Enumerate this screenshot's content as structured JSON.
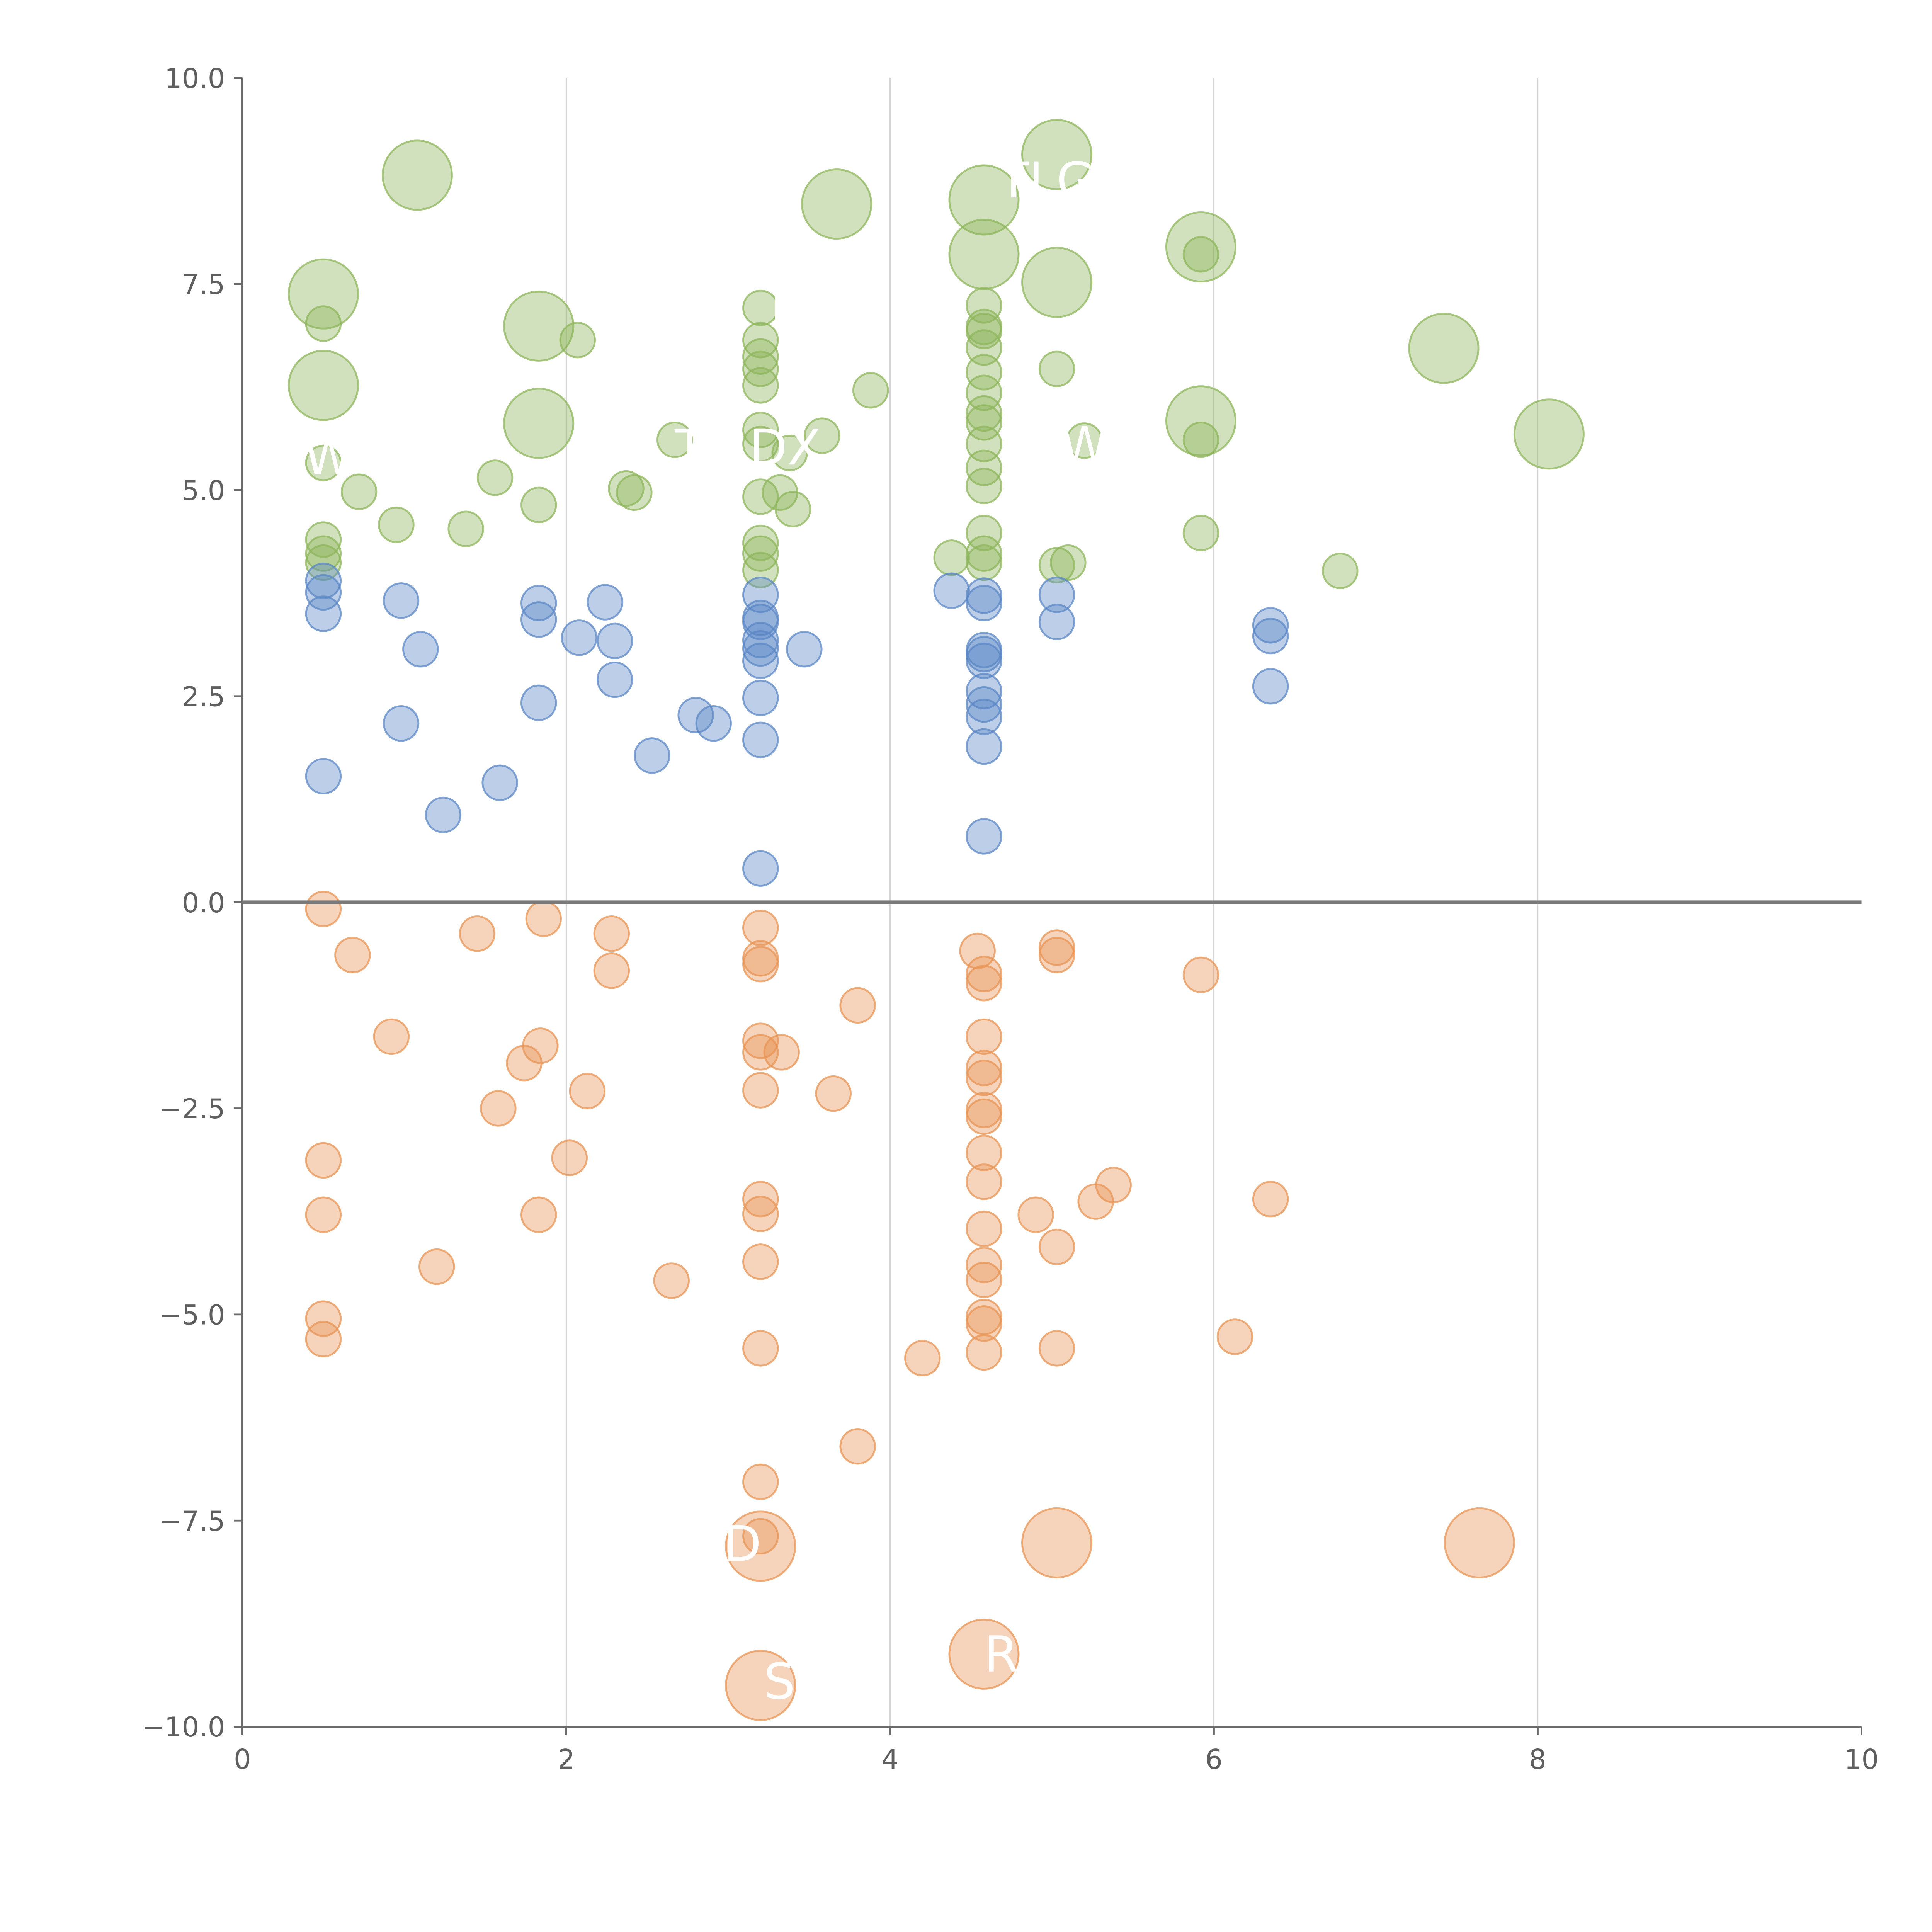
{
  "colors": {
    "positive_high": "#8db55b",
    "positive_low": "#5b87c5",
    "negative": "#e89454",
    "grid": "#d5d5d5",
    "axis": "#6b6b6b",
    "zero_line": "#7a7a7a",
    "label": "#ffffff"
  },
  "chart_data": {
    "type": "scatter",
    "title": "",
    "xlabel": "",
    "ylabel": "",
    "xlim": [
      0,
      10
    ],
    "ylim": [
      -10,
      10
    ],
    "x_ticks": [
      "0",
      "2",
      "4",
      "6",
      "8",
      "10"
    ],
    "y_ticks": [
      "10.0",
      "7.5",
      "5.0",
      "2.5",
      "0.0",
      "−2.5",
      "−5.0",
      "−7.5",
      "−10.0"
    ],
    "grid": "vertical",
    "series": [
      {
        "name": "green",
        "color": "positive_high",
        "points": [
          {
            "x": 1.08,
            "y": 8.82,
            "s": 28
          },
          {
            "x": 0.5,
            "y": 7.38,
            "s": 28
          },
          {
            "x": 0.5,
            "y": 7.02,
            "s": 14
          },
          {
            "x": 0.5,
            "y": 6.27,
            "s": 28
          },
          {
            "x": 0.5,
            "y": 5.33,
            "s": 14
          },
          {
            "x": 0.72,
            "y": 4.98,
            "s": 14
          },
          {
            "x": 0.5,
            "y": 4.4,
            "s": 14
          },
          {
            "x": 0.5,
            "y": 4.23,
            "s": 14
          },
          {
            "x": 0.5,
            "y": 4.12,
            "s": 14
          },
          {
            "x": 0.95,
            "y": 4.58,
            "s": 14
          },
          {
            "x": 1.38,
            "y": 4.53,
            "s": 14
          },
          {
            "x": 1.56,
            "y": 5.15,
            "s": 14
          },
          {
            "x": 1.83,
            "y": 6.99,
            "s": 28
          },
          {
            "x": 2.07,
            "y": 6.82,
            "s": 14
          },
          {
            "x": 1.83,
            "y": 5.81,
            "s": 28
          },
          {
            "x": 1.83,
            "y": 4.82,
            "s": 14
          },
          {
            "x": 2.37,
            "y": 5.02,
            "s": 14
          },
          {
            "x": 2.42,
            "y": 4.97,
            "s": 14
          },
          {
            "x": 2.67,
            "y": 5.61,
            "s": 14
          },
          {
            "x": 3.2,
            "y": 7.21,
            "s": 14
          },
          {
            "x": 3.2,
            "y": 6.82,
            "s": 14
          },
          {
            "x": 3.2,
            "y": 6.62,
            "s": 14
          },
          {
            "x": 3.2,
            "y": 6.47,
            "s": 14
          },
          {
            "x": 3.2,
            "y": 6.27,
            "s": 14
          },
          {
            "x": 3.2,
            "y": 5.73,
            "s": 14
          },
          {
            "x": 3.2,
            "y": 5.56,
            "s": 14
          },
          {
            "x": 3.38,
            "y": 5.45,
            "s": 14
          },
          {
            "x": 3.58,
            "y": 5.66,
            "s": 14
          },
          {
            "x": 3.2,
            "y": 4.92,
            "s": 14
          },
          {
            "x": 3.32,
            "y": 4.97,
            "s": 14
          },
          {
            "x": 3.4,
            "y": 4.77,
            "s": 14
          },
          {
            "x": 3.2,
            "y": 4.36,
            "s": 14
          },
          {
            "x": 3.2,
            "y": 4.23,
            "s": 14
          },
          {
            "x": 3.2,
            "y": 4.03,
            "s": 14
          },
          {
            "x": 3.67,
            "y": 8.47,
            "s": 28
          },
          {
            "x": 3.88,
            "y": 6.21,
            "s": 14
          },
          {
            "x": 4.58,
            "y": 8.52,
            "s": 28
          },
          {
            "x": 4.58,
            "y": 7.86,
            "s": 28
          },
          {
            "x": 4.58,
            "y": 7.24,
            "s": 14
          },
          {
            "x": 4.58,
            "y": 6.98,
            "s": 14
          },
          {
            "x": 4.58,
            "y": 6.93,
            "s": 14
          },
          {
            "x": 4.58,
            "y": 6.73,
            "s": 14
          },
          {
            "x": 4.58,
            "y": 6.43,
            "s": 14
          },
          {
            "x": 4.58,
            "y": 6.18,
            "s": 14
          },
          {
            "x": 4.58,
            "y": 5.93,
            "s": 14
          },
          {
            "x": 4.58,
            "y": 5.82,
            "s": 14
          },
          {
            "x": 4.58,
            "y": 5.56,
            "s": 14
          },
          {
            "x": 4.58,
            "y": 5.27,
            "s": 14
          },
          {
            "x": 4.58,
            "y": 5.05,
            "s": 14
          },
          {
            "x": 4.58,
            "y": 4.48,
            "s": 14
          },
          {
            "x": 4.58,
            "y": 4.23,
            "s": 14
          },
          {
            "x": 4.58,
            "y": 4.12,
            "s": 14
          },
          {
            "x": 4.38,
            "y": 4.18,
            "s": 14
          },
          {
            "x": 5.03,
            "y": 9.07,
            "s": 28
          },
          {
            "x": 5.03,
            "y": 7.52,
            "s": 28
          },
          {
            "x": 5.03,
            "y": 6.47,
            "s": 14
          },
          {
            "x": 5.03,
            "y": 4.09,
            "s": 14
          },
          {
            "x": 5.1,
            "y": 4.12,
            "s": 14
          },
          {
            "x": 5.2,
            "y": 5.6,
            "s": 14
          },
          {
            "x": 5.92,
            "y": 7.95,
            "s": 28
          },
          {
            "x": 5.92,
            "y": 7.86,
            "s": 14
          },
          {
            "x": 5.92,
            "y": 5.84,
            "s": 28
          },
          {
            "x": 5.92,
            "y": 5.61,
            "s": 14
          },
          {
            "x": 5.92,
            "y": 4.48,
            "s": 14
          },
          {
            "x": 6.78,
            "y": 4.02,
            "s": 14
          },
          {
            "x": 7.42,
            "y": 6.72,
            "s": 28
          },
          {
            "x": 8.07,
            "y": 5.68,
            "s": 28
          }
        ]
      },
      {
        "name": "blue",
        "color": "positive_low",
        "points": [
          {
            "x": 0.5,
            "y": 3.9,
            "s": 14
          },
          {
            "x": 0.5,
            "y": 3.76,
            "s": 14
          },
          {
            "x": 0.5,
            "y": 3.5,
            "s": 14
          },
          {
            "x": 0.98,
            "y": 3.66,
            "s": 14
          },
          {
            "x": 1.1,
            "y": 3.07,
            "s": 14
          },
          {
            "x": 0.98,
            "y": 2.17,
            "s": 14
          },
          {
            "x": 0.5,
            "y": 1.53,
            "s": 14
          },
          {
            "x": 1.24,
            "y": 1.06,
            "s": 14
          },
          {
            "x": 1.59,
            "y": 1.45,
            "s": 14
          },
          {
            "x": 1.83,
            "y": 3.63,
            "s": 14
          },
          {
            "x": 1.83,
            "y": 3.43,
            "s": 14
          },
          {
            "x": 1.83,
            "y": 2.42,
            "s": 14
          },
          {
            "x": 2.08,
            "y": 3.21,
            "s": 14
          },
          {
            "x": 2.24,
            "y": 3.64,
            "s": 14
          },
          {
            "x": 2.3,
            "y": 3.17,
            "s": 14
          },
          {
            "x": 2.3,
            "y": 2.7,
            "s": 14
          },
          {
            "x": 2.53,
            "y": 1.78,
            "s": 14
          },
          {
            "x": 2.8,
            "y": 2.27,
            "s": 14
          },
          {
            "x": 2.91,
            "y": 2.17,
            "s": 14
          },
          {
            "x": 3.2,
            "y": 3.73,
            "s": 14
          },
          {
            "x": 3.2,
            "y": 3.45,
            "s": 14
          },
          {
            "x": 3.2,
            "y": 3.4,
            "s": 14
          },
          {
            "x": 3.2,
            "y": 3.18,
            "s": 14
          },
          {
            "x": 3.2,
            "y": 3.08,
            "s": 14
          },
          {
            "x": 3.2,
            "y": 2.93,
            "s": 14
          },
          {
            "x": 3.2,
            "y": 2.48,
            "s": 14
          },
          {
            "x": 3.2,
            "y": 1.97,
            "s": 14
          },
          {
            "x": 3.2,
            "y": 0.41,
            "s": 14
          },
          {
            "x": 3.47,
            "y": 3.07,
            "s": 14
          },
          {
            "x": 4.38,
            "y": 3.78,
            "s": 14
          },
          {
            "x": 4.58,
            "y": 3.72,
            "s": 14
          },
          {
            "x": 4.58,
            "y": 3.63,
            "s": 14
          },
          {
            "x": 4.58,
            "y": 3.06,
            "s": 14
          },
          {
            "x": 4.58,
            "y": 3.01,
            "s": 14
          },
          {
            "x": 4.58,
            "y": 2.93,
            "s": 14
          },
          {
            "x": 4.58,
            "y": 2.56,
            "s": 14
          },
          {
            "x": 4.58,
            "y": 2.4,
            "s": 14
          },
          {
            "x": 4.58,
            "y": 2.25,
            "s": 14
          },
          {
            "x": 4.58,
            "y": 1.89,
            "s": 14
          },
          {
            "x": 4.58,
            "y": 0.8,
            "s": 14
          },
          {
            "x": 5.03,
            "y": 3.73,
            "s": 14
          },
          {
            "x": 5.03,
            "y": 3.4,
            "s": 14
          },
          {
            "x": 6.35,
            "y": 3.36,
            "s": 14
          },
          {
            "x": 6.35,
            "y": 3.23,
            "s": 14
          },
          {
            "x": 6.35,
            "y": 2.62,
            "s": 14
          }
        ]
      },
      {
        "name": "orange",
        "color": "negative",
        "points": [
          {
            "x": 0.5,
            "y": -0.08,
            "s": 14
          },
          {
            "x": 0.68,
            "y": -0.64,
            "s": 14
          },
          {
            "x": 0.92,
            "y": -1.63,
            "s": 14
          },
          {
            "x": 0.5,
            "y": -3.13,
            "s": 14
          },
          {
            "x": 0.5,
            "y": -3.79,
            "s": 14
          },
          {
            "x": 0.5,
            "y": -5.05,
            "s": 14
          },
          {
            "x": 0.5,
            "y": -5.3,
            "s": 14
          },
          {
            "x": 1.2,
            "y": -4.42,
            "s": 14
          },
          {
            "x": 1.45,
            "y": -0.38,
            "s": 14
          },
          {
            "x": 1.58,
            "y": -2.5,
            "s": 14
          },
          {
            "x": 1.74,
            "y": -1.95,
            "s": 14
          },
          {
            "x": 1.84,
            "y": -1.74,
            "s": 14
          },
          {
            "x": 1.86,
            "y": -0.2,
            "s": 14
          },
          {
            "x": 1.83,
            "y": -3.79,
            "s": 14
          },
          {
            "x": 2.02,
            "y": -3.1,
            "s": 14
          },
          {
            "x": 2.13,
            "y": -2.29,
            "s": 14
          },
          {
            "x": 2.28,
            "y": -0.38,
            "s": 14
          },
          {
            "x": 2.28,
            "y": -0.83,
            "s": 14
          },
          {
            "x": 2.65,
            "y": -4.59,
            "s": 14
          },
          {
            "x": 3.2,
            "y": -0.31,
            "s": 14
          },
          {
            "x": 3.2,
            "y": -0.68,
            "s": 14
          },
          {
            "x": 3.2,
            "y": -0.75,
            "s": 14
          },
          {
            "x": 3.2,
            "y": -1.68,
            "s": 14
          },
          {
            "x": 3.2,
            "y": -1.82,
            "s": 14
          },
          {
            "x": 3.33,
            "y": -1.82,
            "s": 14
          },
          {
            "x": 3.2,
            "y": -2.28,
            "s": 14
          },
          {
            "x": 3.2,
            "y": -3.6,
            "s": 14
          },
          {
            "x": 3.2,
            "y": -3.78,
            "s": 14
          },
          {
            "x": 3.2,
            "y": -4.36,
            "s": 14
          },
          {
            "x": 3.2,
            "y": -5.41,
            "s": 14
          },
          {
            "x": 3.2,
            "y": -7.03,
            "s": 14
          },
          {
            "x": 3.2,
            "y": -7.69,
            "s": 14
          },
          {
            "x": 3.2,
            "y": -7.81,
            "s": 28
          },
          {
            "x": 3.2,
            "y": -9.5,
            "s": 28
          },
          {
            "x": 3.65,
            "y": -2.32,
            "s": 14
          },
          {
            "x": 3.8,
            "y": -1.25,
            "s": 14
          },
          {
            "x": 3.8,
            "y": -6.6,
            "s": 14
          },
          {
            "x": 4.2,
            "y": -5.53,
            "s": 14
          },
          {
            "x": 4.54,
            "y": -0.59,
            "s": 14
          },
          {
            "x": 4.58,
            "y": -0.87,
            "s": 14
          },
          {
            "x": 4.58,
            "y": -0.98,
            "s": 14
          },
          {
            "x": 4.58,
            "y": -1.63,
            "s": 14
          },
          {
            "x": 4.58,
            "y": -2.01,
            "s": 14
          },
          {
            "x": 4.58,
            "y": -2.13,
            "s": 14
          },
          {
            "x": 4.58,
            "y": -2.52,
            "s": 14
          },
          {
            "x": 4.58,
            "y": -2.6,
            "s": 14
          },
          {
            "x": 4.58,
            "y": -3.04,
            "s": 14
          },
          {
            "x": 4.58,
            "y": -3.39,
            "s": 14
          },
          {
            "x": 4.58,
            "y": -3.96,
            "s": 14
          },
          {
            "x": 4.58,
            "y": -4.4,
            "s": 14
          },
          {
            "x": 4.58,
            "y": -4.58,
            "s": 14
          },
          {
            "x": 4.58,
            "y": -5.03,
            "s": 14
          },
          {
            "x": 4.58,
            "y": -5.11,
            "s": 14
          },
          {
            "x": 4.58,
            "y": -5.46,
            "s": 14
          },
          {
            "x": 4.58,
            "y": -9.12,
            "s": 28
          },
          {
            "x": 4.9,
            "y": -3.79,
            "s": 14
          },
          {
            "x": 5.03,
            "y": -0.55,
            "s": 14
          },
          {
            "x": 5.03,
            "y": -0.64,
            "s": 14
          },
          {
            "x": 5.03,
            "y": -4.18,
            "s": 14
          },
          {
            "x": 5.03,
            "y": -5.41,
            "s": 14
          },
          {
            "x": 5.03,
            "y": -7.77,
            "s": 28
          },
          {
            "x": 5.27,
            "y": -3.63,
            "s": 14
          },
          {
            "x": 5.38,
            "y": -3.43,
            "s": 14
          },
          {
            "x": 5.92,
            "y": -0.88,
            "s": 14
          },
          {
            "x": 6.13,
            "y": -5.27,
            "s": 14
          },
          {
            "x": 6.35,
            "y": -3.6,
            "s": 14
          },
          {
            "x": 7.64,
            "y": -7.77,
            "s": 28
          }
        ]
      }
    ],
    "annotations": [
      {
        "text": "TLG",
        "x": 4.67,
        "y": 8.76
      },
      {
        "text": "W",
        "x": 0.38,
        "y": 5.4
      },
      {
        "text": "T",
        "x": 2.67,
        "y": 5.52
      },
      {
        "text": "DX",
        "x": 3.13,
        "y": 5.52
      },
      {
        "text": "I",
        "x": 3.26,
        "y": 7.18
      },
      {
        "text": "WO",
        "x": 5.05,
        "y": 5.55
      },
      {
        "text": "D",
        "x": 2.97,
        "y": -7.78
      },
      {
        "text": "R",
        "x": 4.58,
        "y": -9.12
      },
      {
        "text": "S",
        "x": 3.22,
        "y": -9.45
      }
    ]
  }
}
